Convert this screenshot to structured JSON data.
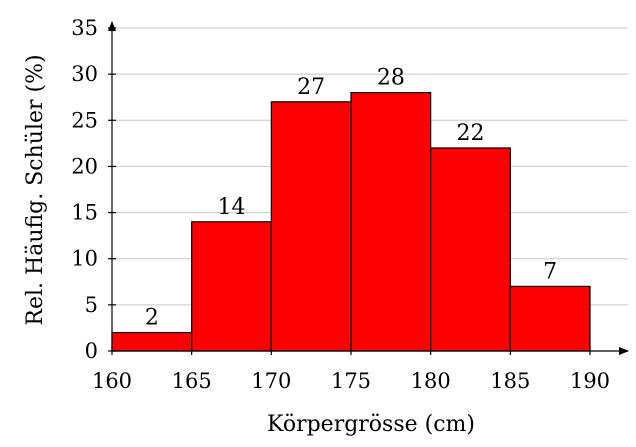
{
  "chart_data": {
    "type": "bar",
    "bins": [
      {
        "start": 160,
        "end": 165,
        "value": 2
      },
      {
        "start": 165,
        "end": 170,
        "value": 14
      },
      {
        "start": 170,
        "end": 175,
        "value": 27
      },
      {
        "start": 175,
        "end": 180,
        "value": 28
      },
      {
        "start": 180,
        "end": 185,
        "value": 22
      },
      {
        "start": 185,
        "end": 190,
        "value": 7
      }
    ],
    "data_labels": [
      "2",
      "14",
      "27",
      "28",
      "22",
      "7"
    ],
    "xlabel": "Körpergrösse (cm)",
    "ylabel": "Rel. Häufig. Schüler (%)",
    "xlim": [
      160,
      190
    ],
    "ylim": [
      0,
      35
    ],
    "xticks": [
      160,
      165,
      170,
      175,
      180,
      185,
      190
    ],
    "xtick_labels": [
      "160",
      "165",
      "170",
      "175",
      "180",
      "185",
      "190"
    ],
    "yticks": [
      0,
      5,
      10,
      15,
      20,
      25,
      30,
      35
    ],
    "ytick_labels": [
      "0",
      "5",
      "10",
      "15",
      "20",
      "25",
      "30",
      "35"
    ],
    "grid": "horizontal",
    "colors": {
      "bar": "#ff0000",
      "edge": "#000000",
      "grid": "#c8c8c8"
    }
  }
}
